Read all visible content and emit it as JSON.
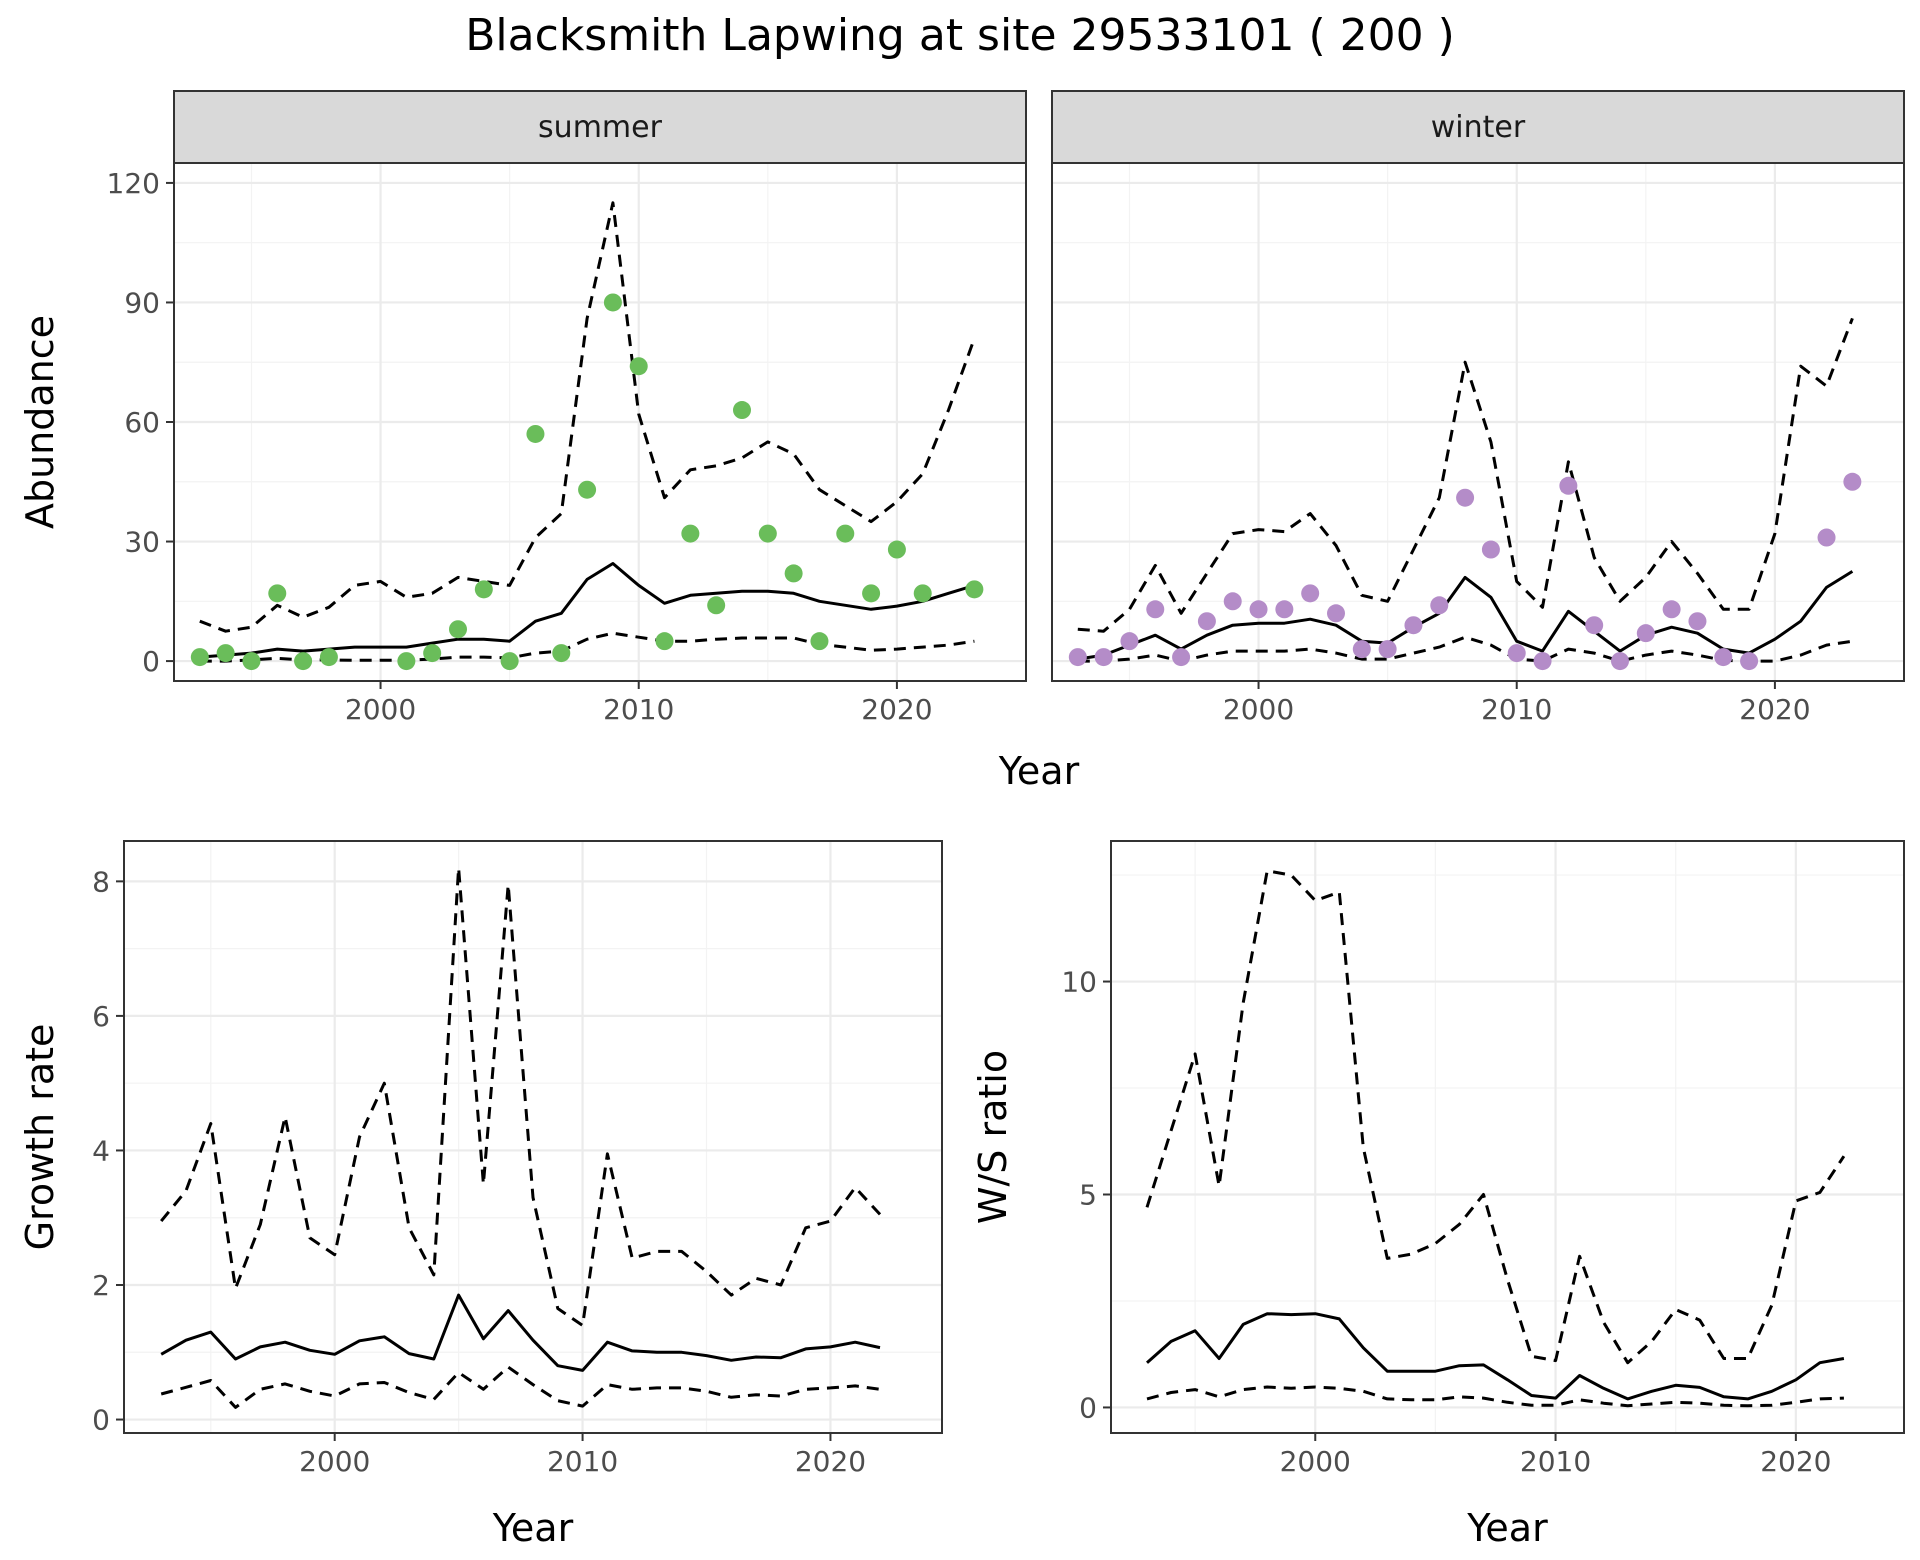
{
  "title": "Blacksmith Lapwing at site 29533101 ( 200 )",
  "colors": {
    "summer_points": "#6abd5a",
    "winter_points": "#b48cc8",
    "lines": "#000000"
  },
  "chart_data": [
    {
      "type": "scatter",
      "facet": "summer",
      "xlabel": "Year",
      "ylabel": "Abundance",
      "xlim": [
        1992,
        2025
      ],
      "ylim": [
        -5,
        125
      ],
      "xticks": [
        2000,
        2010,
        2020
      ],
      "yticks": [
        0,
        30,
        60,
        90,
        120
      ],
      "grid": true,
      "x": [
        1993,
        1994,
        1995,
        1996,
        1997,
        1998,
        1999,
        2000,
        2001,
        2002,
        2003,
        2004,
        2005,
        2006,
        2007,
        2008,
        2009,
        2010,
        2011,
        2012,
        2013,
        2014,
        2015,
        2016,
        2017,
        2018,
        2019,
        2020,
        2021,
        2022,
        2023
      ],
      "points": [
        1,
        2,
        0,
        17,
        0,
        1,
        null,
        null,
        0,
        2,
        8,
        18,
        0,
        57,
        2,
        43,
        90,
        74,
        5,
        32,
        14,
        63,
        32,
        22,
        5,
        32,
        17,
        28,
        17,
        null,
        18
      ],
      "mean": [
        1,
        1.5,
        2,
        3,
        2.5,
        3,
        3.5,
        3.5,
        3.5,
        4.5,
        5.5,
        5.5,
        5,
        10,
        12,
        20.5,
        24.5,
        19,
        14.5,
        16.5,
        17,
        17.5,
        17.5,
        17,
        15,
        14,
        13,
        13.8,
        15,
        17,
        19
      ],
      "upper": [
        10,
        7.5,
        8.5,
        14,
        11,
        13.5,
        19,
        20,
        16,
        17,
        21,
        20,
        19,
        31,
        37,
        86,
        115,
        62,
        41,
        48,
        49,
        51,
        55,
        52,
        43,
        39,
        35,
        40,
        47,
        63,
        81
      ],
      "lower": [
        0,
        0,
        0.3,
        0.7,
        0.3,
        0.3,
        0.2,
        0.2,
        0.2,
        0.5,
        1,
        1,
        0.8,
        2,
        2.5,
        5.5,
        7,
        6,
        5,
        5,
        5.5,
        5.8,
        5.8,
        5.8,
        4.2,
        3.5,
        2.7,
        3,
        3.5,
        4,
        5
      ]
    },
    {
      "type": "scatter",
      "facet": "winter",
      "xlabel": "Year",
      "ylabel": "Abundance",
      "xlim": [
        1992,
        2025
      ],
      "ylim": [
        -5,
        125
      ],
      "xticks": [
        2000,
        2010,
        2020
      ],
      "yticks": [
        0,
        30,
        60,
        90,
        120
      ],
      "grid": true,
      "x": [
        1993,
        1994,
        1995,
        1996,
        1997,
        1998,
        1999,
        2000,
        2001,
        2002,
        2003,
        2004,
        2005,
        2006,
        2007,
        2008,
        2009,
        2010,
        2011,
        2012,
        2013,
        2014,
        2015,
        2016,
        2017,
        2018,
        2019,
        2020,
        2021,
        2022,
        2023
      ],
      "points": [
        1,
        1,
        5,
        13,
        1,
        10,
        15,
        13,
        13,
        17,
        12,
        3,
        3,
        9,
        14,
        41,
        28,
        2,
        0,
        44,
        9,
        0,
        7,
        13,
        10,
        1,
        0,
        null,
        null,
        31,
        45
      ],
      "mean": [
        0.5,
        1.5,
        4,
        6.5,
        3,
        6.5,
        9,
        9.5,
        9.5,
        10.5,
        9,
        5,
        4.5,
        8.5,
        12,
        21,
        16,
        5,
        2.5,
        12.5,
        7.5,
        2.5,
        6.5,
        8.5,
        7,
        3,
        2,
        5.5,
        10,
        18.5,
        22.5
      ],
      "upper": [
        8,
        7.5,
        13,
        24,
        12,
        22,
        32,
        33,
        32.5,
        37,
        29,
        16.5,
        15,
        28,
        41,
        75,
        55,
        20,
        13.5,
        50,
        26,
        15,
        21,
        30,
        22,
        13,
        13,
        32,
        74,
        69,
        86
      ],
      "lower": [
        0,
        0,
        0.5,
        1.5,
        0,
        1.5,
        2.5,
        2.5,
        2.5,
        3,
        2,
        0.5,
        0.5,
        2,
        3.5,
        6,
        4,
        0.5,
        0,
        3,
        2,
        0,
        1.5,
        2.5,
        1.5,
        0.2,
        0,
        0,
        1.5,
        4,
        5
      ]
    },
    {
      "type": "line",
      "xlabel": "Year",
      "ylabel": "Growth rate",
      "xlim": [
        1991.5,
        2024.5
      ],
      "ylim": [
        -0.2,
        8.6
      ],
      "xticks": [
        2000,
        2010,
        2020
      ],
      "yticks": [
        0,
        2,
        4,
        6,
        8
      ],
      "grid": true,
      "x": [
        1993,
        1994,
        1995,
        1996,
        1997,
        1998,
        1999,
        2000,
        2001,
        2002,
        2003,
        2004,
        2005,
        2006,
        2007,
        2008,
        2009,
        2010,
        2011,
        2012,
        2013,
        2014,
        2015,
        2016,
        2017,
        2018,
        2019,
        2020,
        2021,
        2022
      ],
      "mean": [
        0.97,
        1.18,
        1.3,
        0.9,
        1.08,
        1.15,
        1.03,
        0.97,
        1.17,
        1.23,
        0.98,
        0.9,
        1.85,
        1.2,
        1.62,
        1.18,
        0.8,
        0.73,
        1.15,
        1.02,
        1.0,
        1.0,
        0.95,
        0.88,
        0.93,
        0.92,
        1.05,
        1.08,
        1.15,
        1.07
      ],
      "upper": [
        2.95,
        3.4,
        4.4,
        1.95,
        2.9,
        4.5,
        2.7,
        2.45,
        4.2,
        5.0,
        2.85,
        2.15,
        8.2,
        3.5,
        7.95,
        3.3,
        1.65,
        1.4,
        3.95,
        2.4,
        2.5,
        2.5,
        2.2,
        1.85,
        2.1,
        2.0,
        2.85,
        2.95,
        3.45,
        3.05
      ],
      "lower": [
        0.38,
        0.48,
        0.58,
        0.18,
        0.45,
        0.53,
        0.42,
        0.35,
        0.53,
        0.55,
        0.4,
        0.3,
        0.7,
        0.45,
        0.78,
        0.52,
        0.28,
        0.2,
        0.52,
        0.45,
        0.47,
        0.47,
        0.42,
        0.33,
        0.37,
        0.35,
        0.45,
        0.47,
        0.5,
        0.45
      ]
    },
    {
      "type": "line",
      "xlabel": "Year",
      "ylabel": "W/S ratio",
      "xlim": [
        1991.5,
        2024.5
      ],
      "ylim": [
        -0.6,
        13.3
      ],
      "xticks": [
        2000,
        2010,
        2020
      ],
      "yticks": [
        0,
        5,
        10
      ],
      "grid": true,
      "x": [
        1993,
        1994,
        1995,
        1996,
        1997,
        1998,
        1999,
        2000,
        2001,
        2002,
        2003,
        2004,
        2005,
        2006,
        2007,
        2008,
        2009,
        2010,
        2011,
        2012,
        2013,
        2014,
        2015,
        2016,
        2017,
        2018,
        2019,
        2020,
        2021,
        2022
      ],
      "mean": [
        1.05,
        1.55,
        1.8,
        1.15,
        1.95,
        2.2,
        2.18,
        2.2,
        2.08,
        1.4,
        0.85,
        0.85,
        0.85,
        0.98,
        1.0,
        0.65,
        0.28,
        0.22,
        0.75,
        0.45,
        0.2,
        0.38,
        0.52,
        0.47,
        0.25,
        0.2,
        0.38,
        0.65,
        1.05,
        1.15
      ],
      "upper": [
        4.7,
        6.5,
        8.3,
        5.2,
        9.5,
        12.6,
        12.5,
        11.9,
        12.1,
        6.1,
        3.5,
        3.6,
        3.85,
        4.3,
        5.0,
        3.0,
        1.2,
        1.1,
        3.55,
        2.0,
        1.05,
        1.55,
        2.3,
        2.05,
        1.15,
        1.15,
        2.4,
        4.85,
        5.05,
        5.9
      ],
      "lower": [
        0.2,
        0.35,
        0.42,
        0.25,
        0.42,
        0.48,
        0.45,
        0.48,
        0.45,
        0.38,
        0.2,
        0.18,
        0.18,
        0.25,
        0.22,
        0.12,
        0.05,
        0.05,
        0.18,
        0.1,
        0.04,
        0.08,
        0.12,
        0.1,
        0.05,
        0.04,
        0.05,
        0.12,
        0.2,
        0.22
      ]
    }
  ]
}
